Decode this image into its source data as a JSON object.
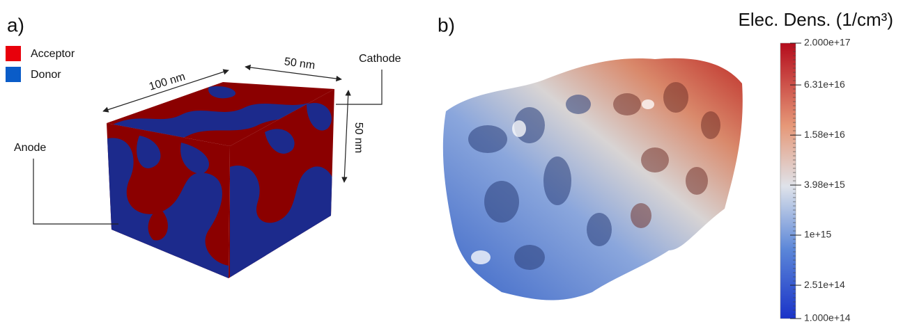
{
  "panel_a": {
    "label": "a)",
    "legend": [
      {
        "name": "Acceptor",
        "color": "#e8000b"
      },
      {
        "name": "Donor",
        "color": "#0a5cc8"
      }
    ],
    "dimensions": [
      "100 nm",
      "50 nm",
      "50 nm"
    ],
    "electrodes": [
      "Anode",
      "Cathode"
    ]
  },
  "panel_b": {
    "label": "b)",
    "colorbar": {
      "title": "Elec. Dens. (1/cm³)",
      "log": true,
      "lim": [
        100000000000000.0,
        2e+17
      ],
      "ticks": [
        {
          "value": 2e+17,
          "label": "2.000e+17"
        },
        {
          "value": 6.31e+16,
          "label": "6.31e+16"
        },
        {
          "value": 1.58e+16,
          "label": "1.58e+16"
        },
        {
          "value": 3980000000000000.0,
          "label": "3.98e+15"
        },
        {
          "value": 1000000000000000.0,
          "label": "1e+15"
        },
        {
          "value": 251000000000000.0,
          "label": "2.51e+14"
        },
        {
          "value": 100000000000000.0,
          "label": "1.000e+14"
        }
      ]
    }
  }
}
